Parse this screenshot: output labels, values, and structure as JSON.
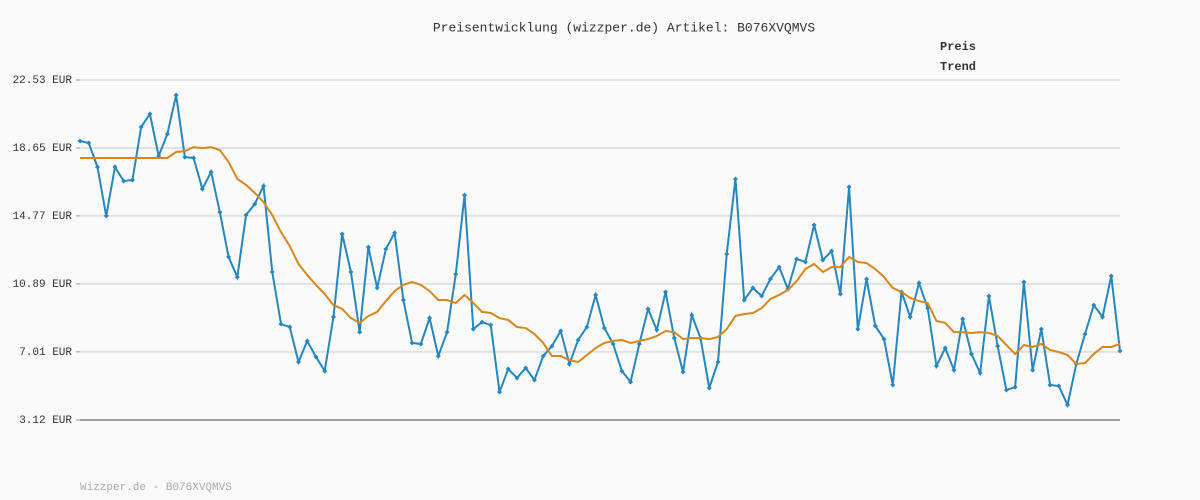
{
  "chart_data": {
    "type": "line",
    "title": "Preisentwicklung (wizzper.de) Artikel: B076XVQMVS",
    "footer": "Wizzper.de - B076XVQMVS",
    "ylim": [
      3.12,
      22.53
    ],
    "yticks": [
      {
        "value": 3.12,
        "label": "3.12 EUR"
      },
      {
        "value": 7.01,
        "label": "7.01 EUR"
      },
      {
        "value": 10.89,
        "label": "10.89 EUR"
      },
      {
        "value": 14.77,
        "label": "14.77 EUR"
      },
      {
        "value": 18.65,
        "label": "18.65 EUR"
      },
      {
        "value": 22.53,
        "label": "22.53 EUR"
      }
    ],
    "grid": true,
    "legend": "top-right",
    "series": [
      {
        "name": "Preis",
        "color": "#2587c2",
        "label_color": "#1d7fa5",
        "markers": true,
        "values": [
          19.05,
          18.93,
          17.56,
          14.77,
          17.56,
          16.76,
          16.82,
          19.85,
          20.59,
          18.19,
          19.45,
          21.67,
          18.13,
          18.08,
          16.31,
          17.28,
          14.99,
          12.43,
          11.28,
          14.82,
          15.45,
          16.48,
          11.57,
          8.6,
          8.43,
          6.43,
          7.63,
          6.72,
          5.92,
          9.0,
          13.74,
          11.57,
          8.14,
          12.99,
          10.66,
          12.88,
          13.8,
          9.97,
          7.52,
          7.46,
          8.94,
          6.77,
          8.14,
          11.45,
          15.96,
          8.31,
          8.71,
          8.54,
          4.72,
          6.03,
          5.52,
          6.09,
          5.4,
          6.77,
          7.34,
          8.2,
          6.32,
          7.69,
          8.43,
          10.26,
          8.37,
          7.46,
          5.92,
          5.29,
          7.46,
          9.46,
          8.26,
          10.43,
          7.8,
          5.86,
          9.11,
          7.8,
          4.95,
          6.43,
          12.6,
          16.88,
          9.97,
          10.66,
          10.2,
          11.17,
          11.85,
          10.6,
          12.31,
          12.14,
          14.25,
          12.25,
          12.77,
          10.31,
          16.42,
          8.31,
          11.17,
          8.49,
          7.74,
          5.12,
          10.43,
          9.0,
          10.94,
          9.51,
          6.2,
          7.23,
          5.97,
          8.89,
          6.89,
          5.8,
          10.2,
          7.34,
          4.83,
          5.0,
          11.0,
          5.97,
          8.31,
          5.12,
          5.06,
          3.98,
          6.32,
          8.03,
          9.68,
          9.0,
          11.34,
          7.06
        ]
      },
      {
        "name": "Trend",
        "color": "#d9861a",
        "label_color": "#d9820f",
        "markers": false,
        "values": [
          18.08,
          18.08,
          18.08,
          18.08,
          18.08,
          18.08,
          18.08,
          18.08,
          18.08,
          18.08,
          18.08,
          18.42,
          18.47,
          18.7,
          18.64,
          18.7,
          18.53,
          17.85,
          16.88,
          16.54,
          16.08,
          15.56,
          14.82,
          13.85,
          13.05,
          12.03,
          11.4,
          10.83,
          10.31,
          9.68,
          9.46,
          8.94,
          8.66,
          9.06,
          9.29,
          9.91,
          10.48,
          10.83,
          11.0,
          10.83,
          10.48,
          9.97,
          9.97,
          9.8,
          10.26,
          9.8,
          9.29,
          9.23,
          8.94,
          8.83,
          8.43,
          8.37,
          8.03,
          7.52,
          6.77,
          6.77,
          6.54,
          6.43,
          6.83,
          7.23,
          7.52,
          7.63,
          7.69,
          7.52,
          7.63,
          7.74,
          7.92,
          8.2,
          8.14,
          7.74,
          7.8,
          7.8,
          7.74,
          7.86,
          8.31,
          9.06,
          9.17,
          9.23,
          9.51,
          10.03,
          10.26,
          10.54,
          11.05,
          11.74,
          12.03,
          11.57,
          11.85,
          11.85,
          12.43,
          12.14,
          12.08,
          11.74,
          11.28,
          10.66,
          10.43,
          10.09,
          9.91,
          9.8,
          8.77,
          8.66,
          8.14,
          8.14,
          8.09,
          8.14,
          8.09,
          7.92,
          7.4,
          6.89,
          7.4,
          7.29,
          7.46,
          7.12,
          7.0,
          6.83,
          6.32,
          6.37,
          6.89,
          7.29,
          7.29,
          7.46
        ]
      }
    ]
  }
}
